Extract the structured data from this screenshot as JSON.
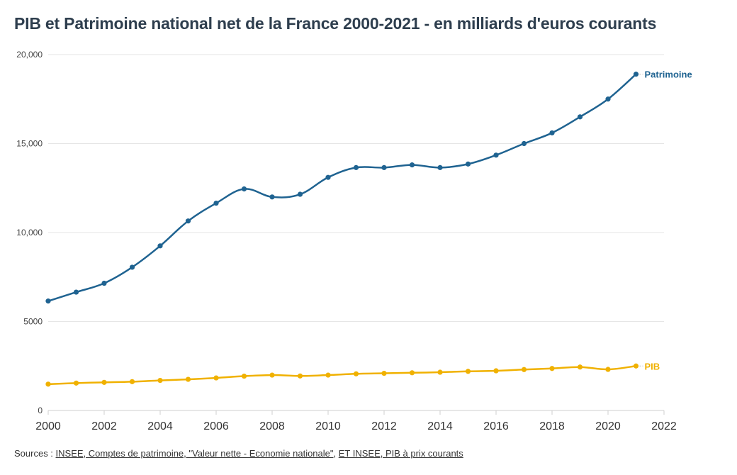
{
  "title": "PIB et Patrimoine national net de la France 2000-2021 - en milliards d'euros courants",
  "source": {
    "prefix": "Sources : ",
    "links": [
      "INSEE, Comptes de patrimoine, \"Valeur nette - Economie nationale\"",
      "ET INSEE, PIB à prix courants"
    ],
    "separator": ", "
  },
  "chart_data": {
    "type": "line",
    "x": [
      2000,
      2001,
      2002,
      2003,
      2004,
      2005,
      2006,
      2007,
      2008,
      2009,
      2010,
      2011,
      2012,
      2013,
      2014,
      2015,
      2016,
      2017,
      2018,
      2019,
      2020,
      2021
    ],
    "series": [
      {
        "name": "Patrimoine",
        "color": "#1f6391",
        "values": [
          6150,
          6650,
          7150,
          8050,
          9250,
          10650,
          11650,
          12450,
          12000,
          12150,
          13100,
          13650,
          13650,
          13800,
          13650,
          13850,
          14350,
          15000,
          15600,
          16500,
          17500,
          18900
        ]
      },
      {
        "name": "PIB",
        "color": "#f0b100",
        "values": [
          1480,
          1540,
          1580,
          1620,
          1690,
          1750,
          1830,
          1930,
          1990,
          1940,
          1990,
          2060,
          2090,
          2120,
          2150,
          2200,
          2230,
          2300,
          2360,
          2440,
          2310,
          2500
        ]
      }
    ],
    "xlim": [
      2000,
      2022
    ],
    "ylim": [
      0,
      20000
    ],
    "x_ticks": [
      "2000",
      "2002",
      "2004",
      "2006",
      "2008",
      "2010",
      "2012",
      "2014",
      "2016",
      "2018",
      "2020",
      "2022"
    ],
    "y_ticks": [
      "0",
      "5000",
      "10,000",
      "15,000",
      "20,000"
    ],
    "grid": true
  }
}
